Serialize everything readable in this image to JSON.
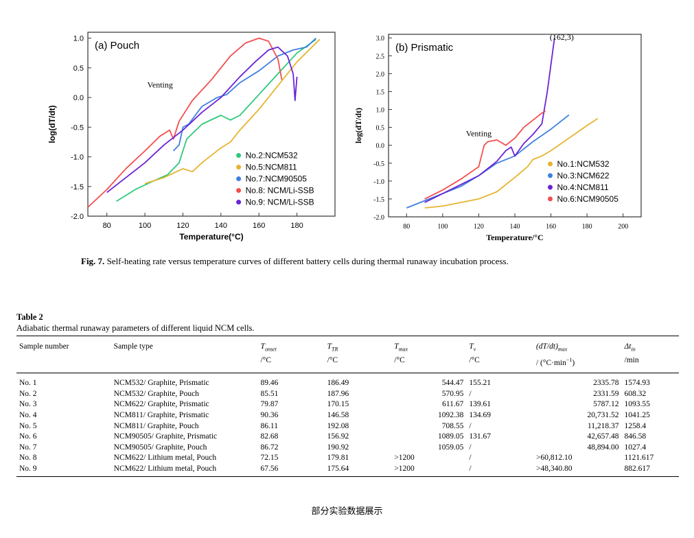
{
  "chart_data": [
    {
      "type": "line",
      "panel": "(a) Pouch",
      "xlabel": "Temperature(°C)",
      "ylabel": "log(dT/dt)",
      "xlim": [
        70,
        200
      ],
      "ylim": [
        -2.0,
        1.1
      ],
      "xticks": [
        80,
        100,
        120,
        140,
        160,
        180
      ],
      "yticks": [
        -2.0,
        -1.5,
        -1.0,
        -0.5,
        0.0,
        0.5,
        1.0
      ],
      "annotations": [
        {
          "text": "Venting",
          "x": 108,
          "y": 0.17
        }
      ],
      "legend_position": "lower-right",
      "series": [
        {
          "name": "No.2:NCM532",
          "color": "#2ec97a",
          "points": [
            [
              85,
              -1.75
            ],
            [
              95,
              -1.55
            ],
            [
              105,
              -1.4
            ],
            [
              112,
              -1.3
            ],
            [
              118,
              -1.1
            ],
            [
              122,
              -0.7
            ],
            [
              130,
              -0.45
            ],
            [
              140,
              -0.3
            ],
            [
              145,
              -0.38
            ],
            [
              150,
              -0.3
            ],
            [
              160,
              0.05
            ],
            [
              170,
              0.4
            ],
            [
              180,
              0.75
            ],
            [
              190,
              0.98
            ]
          ]
        },
        {
          "name": "No.5:NCM811",
          "color": "#e6b430",
          "points": [
            [
              100,
              -1.45
            ],
            [
              110,
              -1.35
            ],
            [
              120,
              -1.2
            ],
            [
              125,
              -1.25
            ],
            [
              130,
              -1.1
            ],
            [
              140,
              -0.85
            ],
            [
              145,
              -0.75
            ],
            [
              150,
              -0.55
            ],
            [
              160,
              -0.2
            ],
            [
              170,
              0.2
            ],
            [
              180,
              0.6
            ],
            [
              192,
              0.98
            ]
          ]
        },
        {
          "name": "No.7:NCM90505",
          "color": "#3f7fe0",
          "points": [
            [
              115,
              -0.9
            ],
            [
              118,
              -0.8
            ],
            [
              120,
              -0.5
            ],
            [
              123,
              -0.45
            ],
            [
              130,
              -0.15
            ],
            [
              138,
              0.0
            ],
            [
              143,
              0.05
            ],
            [
              150,
              0.25
            ],
            [
              160,
              0.45
            ],
            [
              170,
              0.7
            ],
            [
              178,
              0.8
            ],
            [
              185,
              0.85
            ],
            [
              190,
              1.0
            ]
          ]
        },
        {
          "name": "No.8: NCM/Li-SSB",
          "color": "#f24e4e",
          "points": [
            [
              70,
              -1.85
            ],
            [
              80,
              -1.55
            ],
            [
              90,
              -1.2
            ],
            [
              100,
              -0.9
            ],
            [
              108,
              -0.65
            ],
            [
              113,
              -0.55
            ],
            [
              115,
              -0.7
            ],
            [
              118,
              -0.4
            ],
            [
              125,
              -0.05
            ],
            [
              135,
              0.3
            ],
            [
              145,
              0.7
            ],
            [
              153,
              0.92
            ],
            [
              160,
              1.0
            ],
            [
              165,
              0.95
            ],
            [
              170,
              0.65
            ],
            [
              172,
              0.3
            ]
          ]
        },
        {
          "name": "No.9: NCM/Li-SSB",
          "color": "#6a22d6",
          "points": [
            [
              80,
              -1.6
            ],
            [
              90,
              -1.35
            ],
            [
              100,
              -1.1
            ],
            [
              110,
              -0.8
            ],
            [
              120,
              -0.55
            ],
            [
              130,
              -0.25
            ],
            [
              140,
              0.0
            ],
            [
              150,
              0.35
            ],
            [
              158,
              0.6
            ],
            [
              165,
              0.8
            ],
            [
              170,
              0.85
            ],
            [
              175,
              0.7
            ],
            [
              178,
              0.4
            ],
            [
              179,
              -0.05
            ],
            [
              180,
              0.35
            ]
          ]
        }
      ]
    },
    {
      "type": "line",
      "panel": "(b) Prismatic",
      "xlabel": "Temperature/°C",
      "ylabel": "log(dT/dt)",
      "xlim": [
        70,
        210
      ],
      "ylim": [
        -2.0,
        3.1
      ],
      "xticks": [
        80,
        100,
        120,
        140,
        160,
        180,
        200
      ],
      "yticks": [
        -2.0,
        -1.5,
        -1.0,
        -0.5,
        0.0,
        0.5,
        1.0,
        1.5,
        2.0,
        2.5,
        3.0
      ],
      "annotations": [
        {
          "text": "Venting",
          "x": 120,
          "y": 0.25
        },
        {
          "text": "(162,3)",
          "x": 166,
          "y": 2.95
        }
      ],
      "legend_position": "lower-right",
      "series": [
        {
          "name": "No.1:NCM532",
          "color": "#e6b430",
          "points": [
            [
              90,
              -1.75
            ],
            [
              100,
              -1.7
            ],
            [
              110,
              -1.6
            ],
            [
              120,
              -1.5
            ],
            [
              130,
              -1.3
            ],
            [
              140,
              -0.9
            ],
            [
              147,
              -0.6
            ],
            [
              150,
              -0.4
            ],
            [
              155,
              -0.3
            ],
            [
              160,
              -0.15
            ],
            [
              170,
              0.2
            ],
            [
              180,
              0.55
            ],
            [
              186,
              0.75
            ]
          ]
        },
        {
          "name": "No.3:NCM622",
          "color": "#3f7fe0",
          "points": [
            [
              80,
              -1.75
            ],
            [
              90,
              -1.55
            ],
            [
              100,
              -1.35
            ],
            [
              110,
              -1.15
            ],
            [
              120,
              -0.85
            ],
            [
              130,
              -0.5
            ],
            [
              140,
              -0.3
            ],
            [
              150,
              0.1
            ],
            [
              160,
              0.45
            ],
            [
              165,
              0.65
            ],
            [
              170,
              0.85
            ]
          ]
        },
        {
          "name": "No.4:NCM811",
          "color": "#6a22d6",
          "points": [
            [
              90,
              -1.6
            ],
            [
              100,
              -1.35
            ],
            [
              110,
              -1.1
            ],
            [
              120,
              -0.85
            ],
            [
              130,
              -0.45
            ],
            [
              135,
              -0.15
            ],
            [
              138,
              -0.05
            ],
            [
              140,
              -0.3
            ],
            [
              145,
              0.05
            ],
            [
              150,
              0.3
            ],
            [
              155,
              0.6
            ],
            [
              158,
              1.5
            ],
            [
              162,
              3.0
            ]
          ]
        },
        {
          "name": "No.6:NCM90505",
          "color": "#f24e4e",
          "points": [
            [
              90,
              -1.5
            ],
            [
              100,
              -1.25
            ],
            [
              110,
              -0.95
            ],
            [
              120,
              -0.6
            ],
            [
              123,
              0.0
            ],
            [
              125,
              0.1
            ],
            [
              130,
              0.15
            ],
            [
              135,
              0.0
            ],
            [
              140,
              0.2
            ],
            [
              145,
              0.5
            ],
            [
              150,
              0.7
            ],
            [
              155,
              0.9
            ],
            [
              157,
              0.95
            ]
          ]
        }
      ]
    }
  ],
  "figure_caption": {
    "label": "Fig. 7.",
    "text": "Self-heating rate versus temperature curves of different battery cells during thermal runaway incubation process."
  },
  "table": {
    "title": "Table 2",
    "subtitle": "Adiabatic thermal runaway parameters of different liquid NCM cells.",
    "headers": [
      {
        "main": "Sample number",
        "unit": ""
      },
      {
        "main": "Sample type",
        "unit": ""
      },
      {
        "main": "T",
        "sub": "onset",
        "unit": "/°C"
      },
      {
        "main": "T",
        "sub": "TR",
        "unit": "/°C"
      },
      {
        "main": "T",
        "sub": "max",
        "unit": "/°C"
      },
      {
        "main": "T",
        "sub": "v",
        "unit": "/°C"
      },
      {
        "main": "(dT/dt)",
        "sub": "max",
        "unit": "/ (°C·min",
        "unit_sup": "−1",
        "unit_tail": ")"
      },
      {
        "main": "Δt",
        "sub": "in",
        "unit": "/min"
      }
    ],
    "rows": [
      [
        "No. 1",
        "NCM532/ Graphite, Prismatic",
        "89.46",
        "186.49",
        "544.47",
        "155.21",
        "2335.78",
        "1574.93"
      ],
      [
        "No. 2",
        "NCM532/ Graphite, Pouch",
        "85.51",
        "187.96",
        "570.95",
        "/",
        "2331.59",
        "608.32"
      ],
      [
        "No. 3",
        "NCM622/ Graphite, Prismatic",
        "79.87",
        "170.15",
        "611.67",
        "139.61",
        "5787.12",
        "1093.55"
      ],
      [
        "No. 4",
        "NCM811/ Graphite, Prismatic",
        "90.36",
        "146.58",
        "1092.38",
        "134.69",
        "20,731.52",
        "1041.25"
      ],
      [
        "No. 5",
        "NCM811/ Graphite, Pouch",
        "86.11",
        "192.08",
        "708.55",
        "/",
        "11,218.37",
        "1258.4"
      ],
      [
        "No. 6",
        "NCM90505/ Graphite, Prismatic",
        "82.68",
        "156.92",
        "1089.05",
        "131.67",
        "42,657.48",
        "846.58"
      ],
      [
        "No. 7",
        "NCM90505/ Graphite, Pouch",
        "86.72",
        "190.92",
        "1059.05",
        "/",
        "48,894.00",
        "1027.4"
      ],
      [
        "No. 8",
        "NCM622/ Lithium metal, Pouch",
        "72.15",
        "179.81",
        ">1200",
        "/",
        ">60,812.10",
        "1121.617"
      ],
      [
        "No. 9",
        "NCM622/ Lithium metal, Pouch",
        "67.56",
        "175.64",
        ">1200",
        "/",
        ">48,340.80",
        "882.617"
      ]
    ]
  },
  "footer_text": "部分实验数据展示"
}
